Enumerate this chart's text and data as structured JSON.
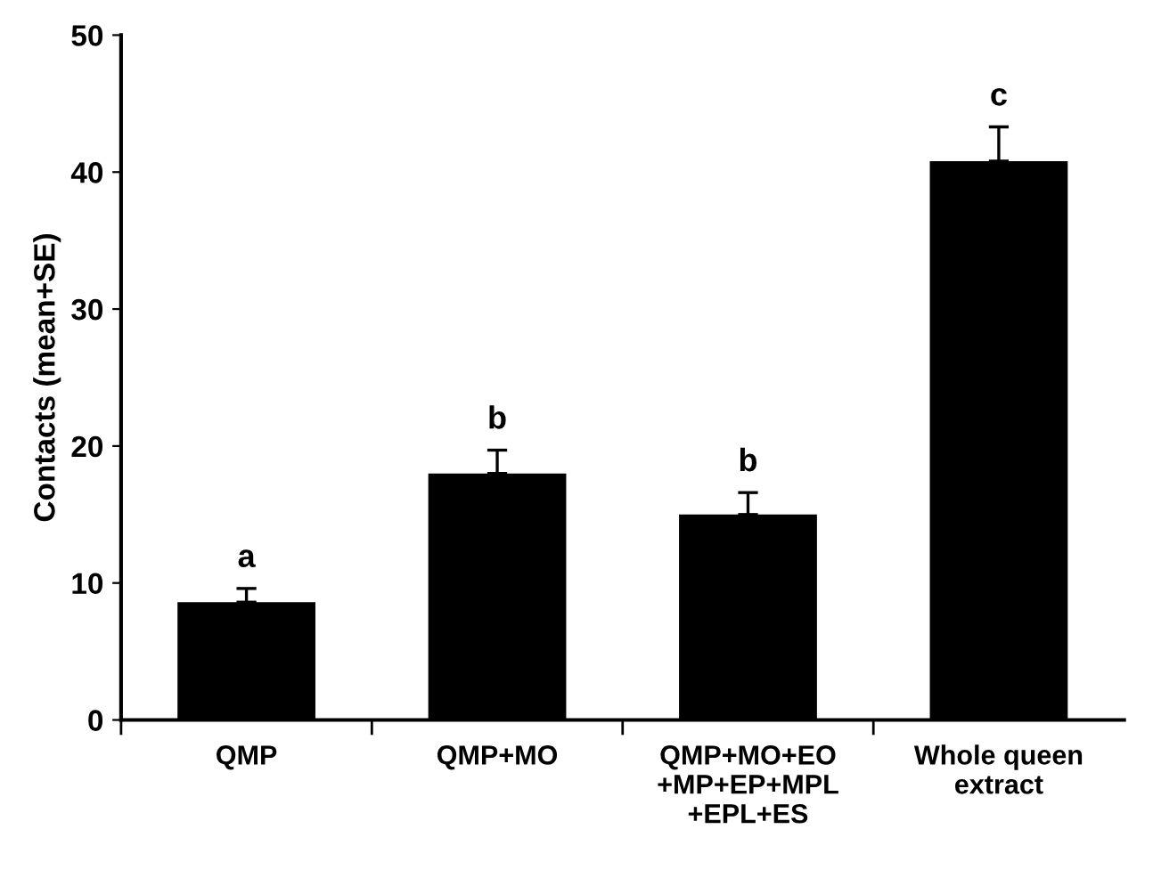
{
  "chart_data": {
    "type": "bar",
    "ylabel": "Contacts (mean+SE)",
    "categories": [
      "QMP",
      "QMP+MO",
      "QMP+MO+EO\n+MP+EP+MPL\n+EPL+ES",
      "Whole queen\nextract"
    ],
    "values": [
      8.6,
      18.0,
      15.0,
      40.8
    ],
    "errors": [
      1.0,
      1.7,
      1.6,
      2.5
    ],
    "color": "#000000",
    "ylim": [
      0,
      50
    ],
    "yticks": [
      0,
      10,
      20,
      30,
      40,
      50
    ],
    "grid": false,
    "annotations": [
      {
        "text": "a",
        "x": "QMP",
        "y": 9.6
      },
      {
        "text": "b",
        "x": "QMP+MO",
        "y": 19.7
      },
      {
        "text": "b",
        "x": "QMP+MO+EO\n+MP+EP+MPL\n+EPL+ES",
        "y": 16.6
      },
      {
        "text": "c",
        "x": "Whole queen\nextract",
        "y": 43.3
      }
    ]
  }
}
